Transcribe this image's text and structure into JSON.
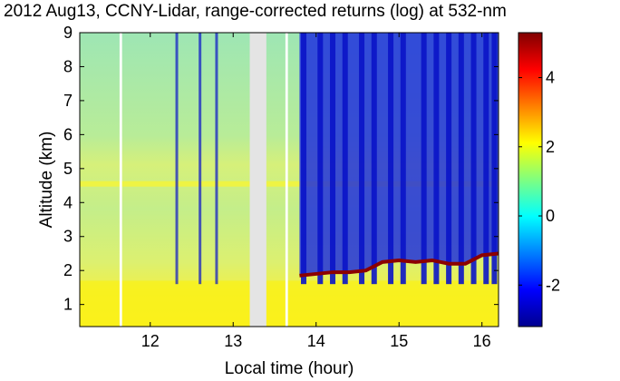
{
  "chart_data": {
    "type": "heatmap",
    "title": "2012 Aug13, CCNY-Lidar, range-corrected returns (log) at 532-nm",
    "xlabel": "Local time (hour)",
    "ylabel": "Altitude (km)",
    "xlim": [
      11.15,
      16.2
    ],
    "ylim": [
      0.35,
      9.0
    ],
    "xticks": [
      12,
      13,
      14,
      15,
      16
    ],
    "yticks": [
      1,
      2,
      3,
      4,
      5,
      6,
      7,
      8,
      9
    ],
    "colorbar": {
      "clim": [
        -3.2,
        5.3
      ],
      "ticks": [
        -2,
        0,
        2,
        4
      ],
      "colormap": "jet"
    },
    "data_gaps": [
      [
        11.63,
        11.66
      ],
      [
        13.2,
        13.4
      ],
      [
        13.63,
        13.66
      ]
    ],
    "cloud_top_layer_km": [
      {
        "x": 13.8,
        "y": 1.85
      },
      {
        "x": 14.0,
        "y": 1.9
      },
      {
        "x": 14.2,
        "y": 1.95
      },
      {
        "x": 14.4,
        "y": 1.95
      },
      {
        "x": 14.6,
        "y": 2.0
      },
      {
        "x": 14.8,
        "y": 2.25
      },
      {
        "x": 15.0,
        "y": 2.3
      },
      {
        "x": 15.2,
        "y": 2.25
      },
      {
        "x": 15.4,
        "y": 2.3
      },
      {
        "x": 15.6,
        "y": 2.2
      },
      {
        "x": 15.8,
        "y": 2.2
      },
      {
        "x": 16.0,
        "y": 2.45
      },
      {
        "x": 16.2,
        "y": 2.5
      }
    ],
    "aerosol_layer_km": 4.55
  }
}
